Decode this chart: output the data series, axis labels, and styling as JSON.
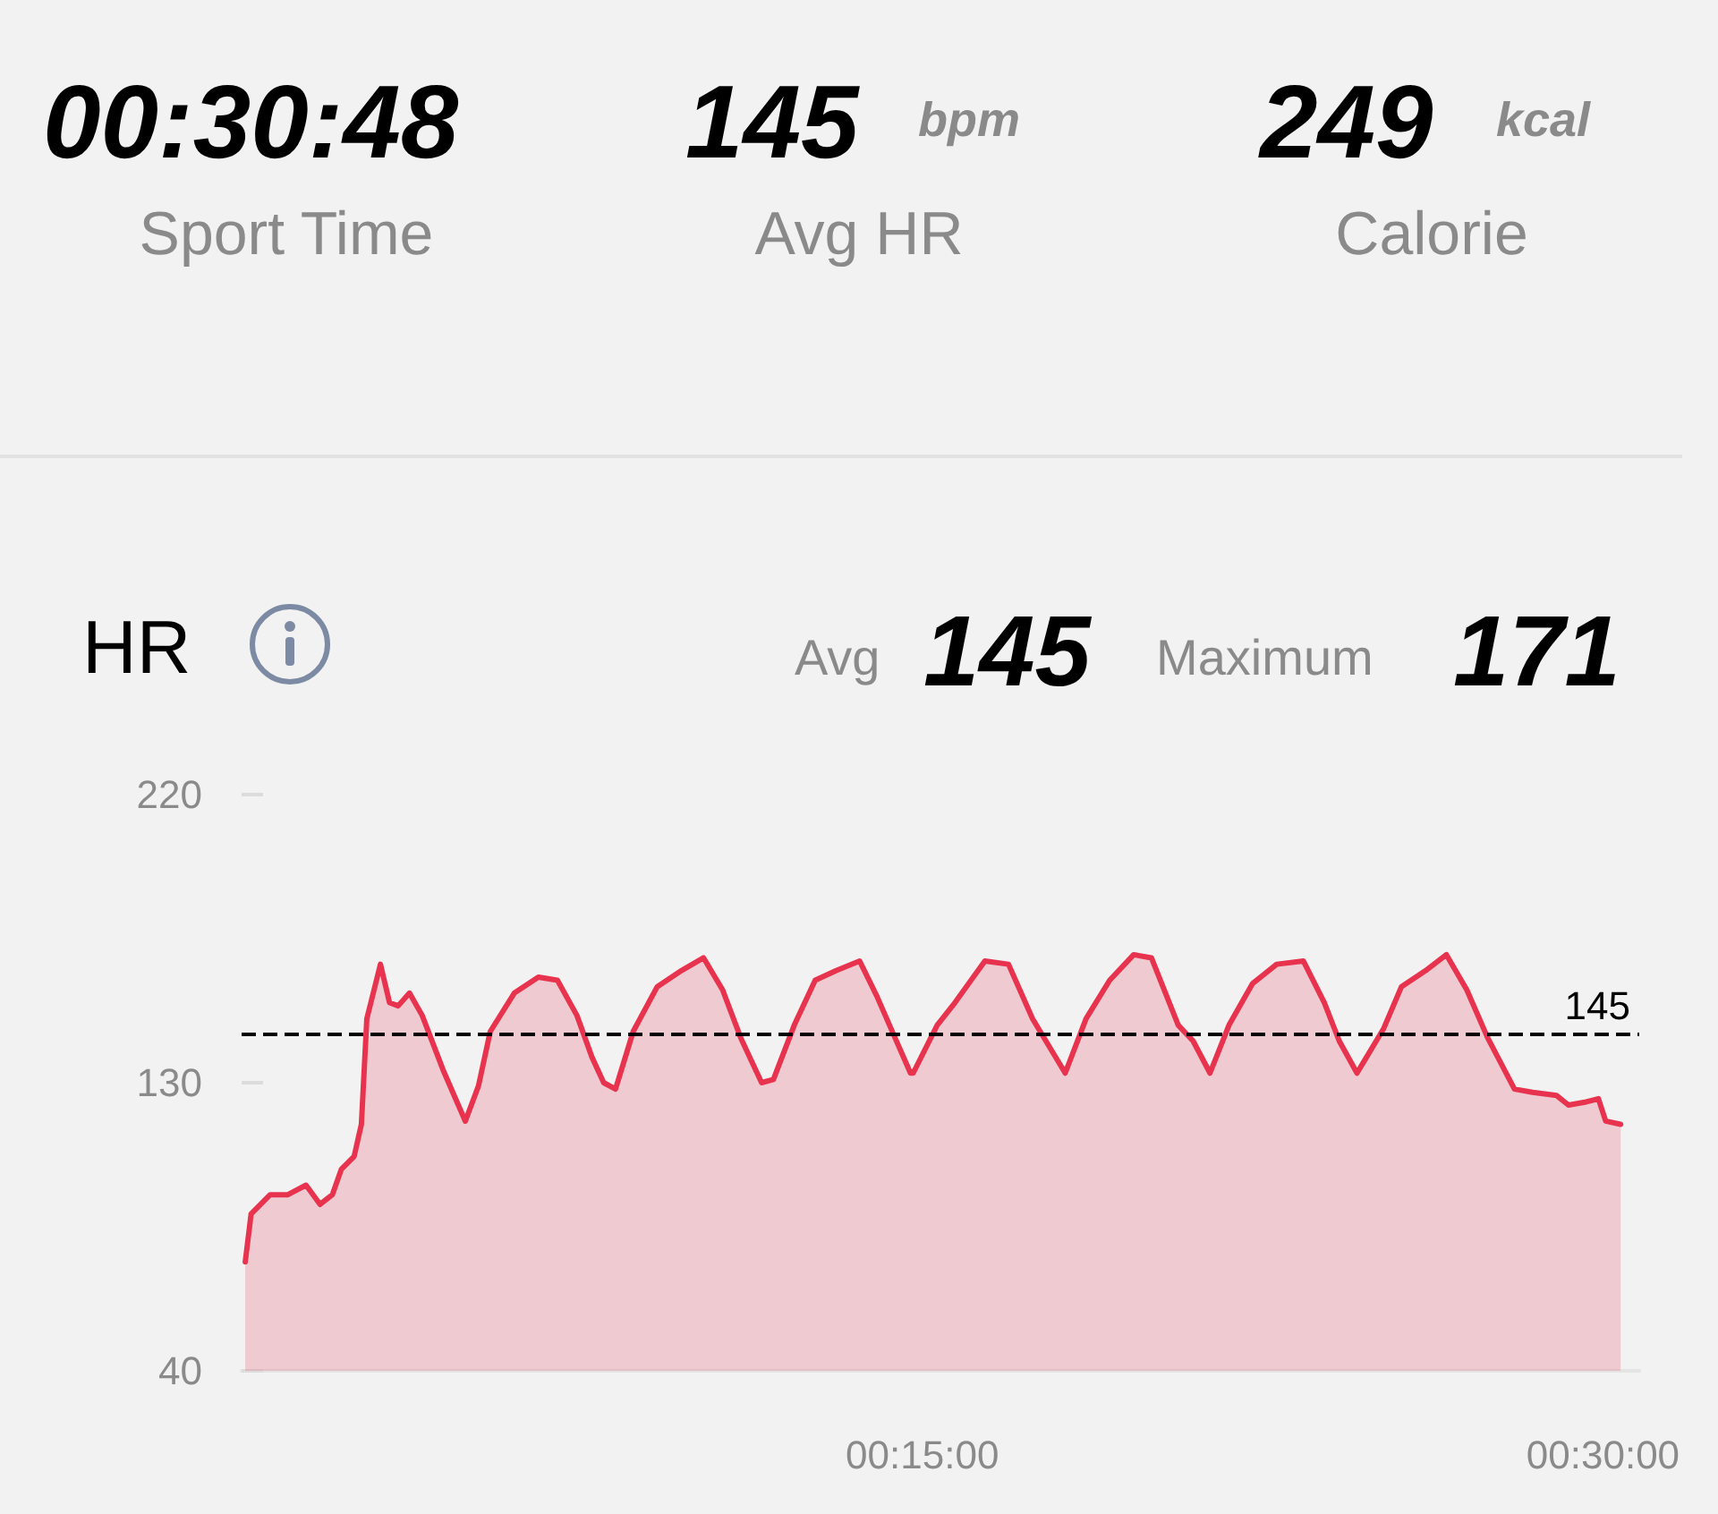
{
  "chart_data": {
    "type": "area",
    "title": "HR",
    "annotations": [
      "00:30:48",
      "Sport Time",
      "145",
      "bpm",
      "Avg HR",
      "249",
      "kcal",
      "Calorie",
      "Avg",
      "145",
      "Maximum",
      "171"
    ],
    "x": [
      0.08,
      0.21,
      0.63,
      1.02,
      1.42,
      1.73,
      2.0,
      2.2,
      2.48,
      2.64,
      2.76,
      3.06,
      3.26,
      3.45,
      3.7,
      3.98,
      4.44,
      4.93,
      5.22,
      5.48,
      6.01,
      6.54,
      6.96,
      7.39,
      7.72,
      7.98,
      8.24,
      8.63,
      9.16,
      9.69,
      10.18,
      10.6,
      11.0,
      11.46,
      11.72,
      12.18,
      12.64,
      13.1,
      13.62,
      14.0,
      14.4,
      14.74,
      14.8,
      15.33,
      15.72,
      16.38,
      16.9,
      17.43,
      18.15,
      18.61,
      19.13,
      19.66,
      20.05,
      20.64,
      20.97,
      21.34,
      21.76,
      22.28,
      22.81,
      23.4,
      23.86,
      24.19,
      24.58,
      25.17,
      25.56,
      26.09,
      26.55,
      27.0,
      27.46,
      28.05,
      28.45,
      28.98,
      29.24,
      29.63,
      29.9,
      30.06,
      30.39
    ],
    "series": [
      {
        "color": "#e8334f",
        "values": [
          74,
          89,
          95,
          95,
          98,
          92,
          95,
          103,
          107,
          117,
          150,
          167,
          155,
          154,
          158,
          151,
          134,
          118,
          129,
          146,
          158,
          163,
          162,
          151,
          138,
          130,
          128,
          146,
          160,
          165,
          169,
          159,
          144,
          130,
          131,
          148,
          162,
          165,
          168,
          157,
          144,
          133,
          133,
          148,
          155,
          168,
          167,
          150,
          133,
          150,
          162,
          170,
          169,
          148,
          143,
          133,
          148,
          161,
          167,
          168,
          155,
          143,
          133,
          147,
          160,
          165,
          170,
          159,
          144,
          128,
          127,
          126,
          123,
          124,
          125,
          118,
          117
        ]
      }
    ],
    "xlim": [
      0,
      30.8
    ],
    "xticks": [
      {
        "value": 15,
        "label": "00:15:00"
      },
      {
        "value": 30,
        "label": "00:30:00"
      }
    ],
    "ylim": [
      40,
      220
    ],
    "yticks": [
      40,
      130,
      220
    ],
    "ref_lines": [
      {
        "axis": "y",
        "value": 145,
        "label": "145",
        "color": "#000000",
        "line_style": "dashed"
      }
    ],
    "grid": false,
    "marker": "none",
    "line_style": "solid"
  }
}
